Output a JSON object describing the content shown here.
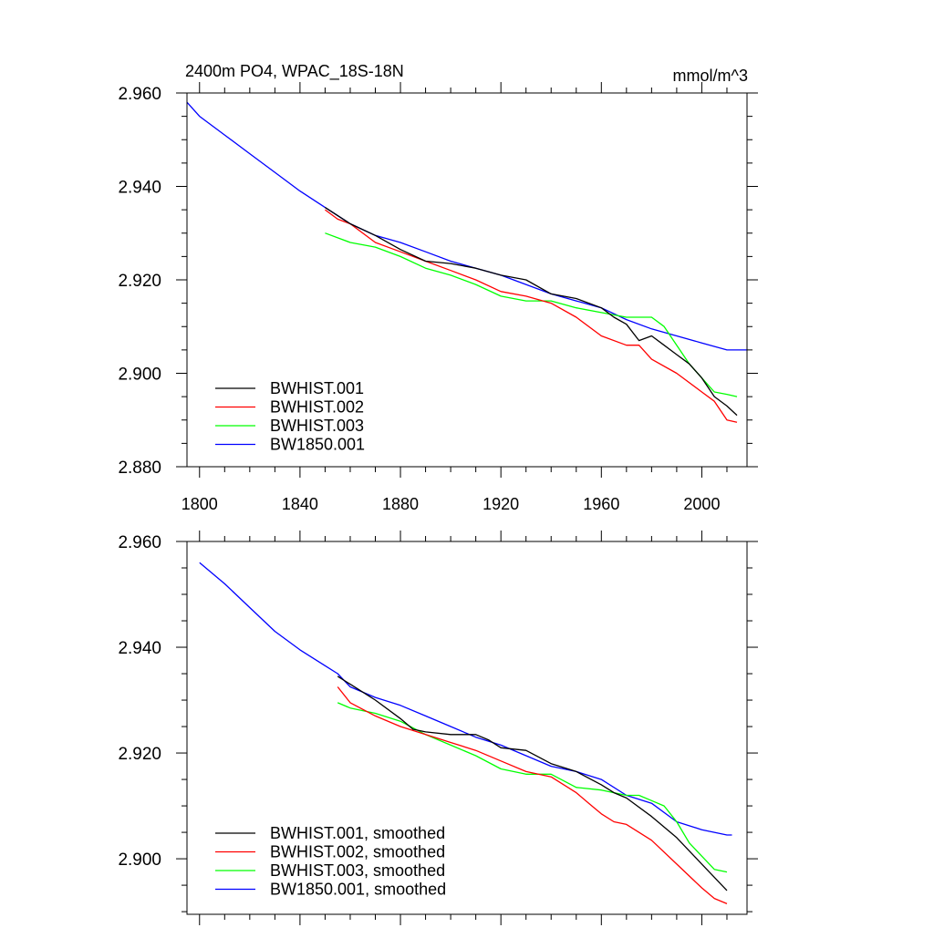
{
  "chart_data": [
    {
      "type": "line",
      "title": "2400m PO4, WPAC_18S-18N",
      "units": "mmol/m^3",
      "xlim": [
        1795,
        2018
      ],
      "ylim": [
        2.88,
        2.96
      ],
      "xticks": [
        1800,
        1840,
        1880,
        1920,
        1960,
        2000
      ],
      "xtick_labels": [
        "1800",
        "1840",
        "1880",
        "1920",
        "1960",
        "2000"
      ],
      "yticks": [
        2.88,
        2.9,
        2.92,
        2.94,
        2.96
      ],
      "ytick_labels": [
        "2.880",
        "2.900",
        "2.920",
        "2.940",
        "2.960"
      ],
      "legend_position": "bottom-left",
      "series": [
        {
          "name": "BWHIST.001",
          "color": "#000000",
          "x": [
            1850,
            1860,
            1870,
            1880,
            1890,
            1900,
            1910,
            1920,
            1930,
            1940,
            1950,
            1960,
            1965,
            1970,
            1975,
            1980,
            1985,
            1990,
            1995,
            2000,
            2005,
            2010,
            2014
          ],
          "y": [
            2.9355,
            2.932,
            2.9295,
            2.9265,
            2.924,
            2.9235,
            2.9225,
            2.921,
            2.92,
            2.917,
            2.916,
            2.914,
            2.912,
            2.9105,
            2.907,
            2.908,
            2.906,
            2.904,
            2.902,
            2.899,
            2.895,
            2.893,
            2.891
          ]
        },
        {
          "name": "BWHIST.002",
          "color": "#ff0000",
          "x": [
            1850,
            1855,
            1860,
            1870,
            1880,
            1890,
            1900,
            1910,
            1920,
            1930,
            1940,
            1950,
            1960,
            1970,
            1975,
            1980,
            1990,
            2000,
            2005,
            2010,
            2014
          ],
          "y": [
            2.935,
            2.933,
            2.932,
            2.928,
            2.926,
            2.924,
            2.922,
            2.92,
            2.9175,
            2.9165,
            2.915,
            2.912,
            2.908,
            2.906,
            2.906,
            2.903,
            2.9,
            2.896,
            2.894,
            2.89,
            2.8895
          ]
        },
        {
          "name": "BWHIST.003",
          "color": "#00ff00",
          "x": [
            1850,
            1860,
            1870,
            1880,
            1890,
            1900,
            1910,
            1920,
            1930,
            1940,
            1950,
            1960,
            1970,
            1975,
            1980,
            1985,
            1990,
            1995,
            2000,
            2005,
            2010,
            2014
          ],
          "y": [
            2.93,
            2.928,
            2.927,
            2.925,
            2.9225,
            2.921,
            2.919,
            2.9165,
            2.9155,
            2.9155,
            2.914,
            2.913,
            2.912,
            2.912,
            2.912,
            2.91,
            2.906,
            2.902,
            2.899,
            2.896,
            2.8955,
            2.895
          ]
        },
        {
          "name": "BW1850.001",
          "color": "#0000ff",
          "x": [
            1795,
            1800,
            1810,
            1820,
            1830,
            1840,
            1850,
            1860,
            1870,
            1880,
            1890,
            1900,
            1910,
            1920,
            1930,
            1940,
            1950,
            1960,
            1970,
            1980,
            1990,
            2000,
            2010,
            2018
          ],
          "y": [
            2.958,
            2.955,
            2.951,
            2.947,
            2.943,
            2.939,
            2.9355,
            2.932,
            2.9295,
            2.928,
            2.926,
            2.924,
            2.9225,
            2.921,
            2.919,
            2.917,
            2.9155,
            2.914,
            2.9115,
            2.9095,
            2.908,
            2.9065,
            2.905,
            2.905
          ]
        }
      ]
    },
    {
      "type": "line",
      "title": "",
      "xlim": [
        1795,
        2018
      ],
      "ylim": [
        2.8895,
        2.96
      ],
      "xticks": [
        1800,
        1840,
        1880,
        1920,
        1960,
        2000
      ],
      "yticks": [
        2.9,
        2.92,
        2.94,
        2.96
      ],
      "ytick_labels": [
        "2.900",
        "2.920",
        "2.940",
        "2.960"
      ],
      "legend_position": "bottom-left",
      "series": [
        {
          "name": "BWHIST.001, smoothed",
          "color": "#000000",
          "x": [
            1855,
            1860,
            1870,
            1880,
            1885,
            1890,
            1900,
            1910,
            1915,
            1920,
            1930,
            1940,
            1950,
            1960,
            1965,
            1970,
            1980,
            1990,
            2000,
            2005,
            2010
          ],
          "y": [
            2.9345,
            2.933,
            2.93,
            2.9265,
            2.9245,
            2.924,
            2.9235,
            2.9235,
            2.9225,
            2.921,
            2.9205,
            2.918,
            2.9165,
            2.914,
            2.9125,
            2.9115,
            2.908,
            2.904,
            2.899,
            2.8965,
            2.894
          ]
        },
        {
          "name": "BWHIST.002, smoothed",
          "color": "#ff0000",
          "x": [
            1855,
            1860,
            1870,
            1880,
            1890,
            1900,
            1910,
            1920,
            1930,
            1940,
            1950,
            1955,
            1960,
            1965,
            1970,
            1980,
            1990,
            2000,
            2005,
            2010
          ],
          "y": [
            2.9325,
            2.9295,
            2.927,
            2.925,
            2.9235,
            2.922,
            2.9205,
            2.9185,
            2.9165,
            2.9155,
            2.9125,
            2.9105,
            2.9085,
            2.907,
            2.9065,
            2.9035,
            2.899,
            2.8945,
            2.8925,
            2.8915
          ]
        },
        {
          "name": "BWHIST.003, smoothed",
          "color": "#00ff00",
          "x": [
            1855,
            1860,
            1870,
            1880,
            1890,
            1900,
            1910,
            1920,
            1930,
            1940,
            1950,
            1960,
            1970,
            1975,
            1980,
            1985,
            1990,
            1995,
            2000,
            2005,
            2010
          ],
          "y": [
            2.9295,
            2.9285,
            2.9275,
            2.926,
            2.9235,
            2.9215,
            2.9195,
            2.917,
            2.916,
            2.916,
            2.9135,
            2.913,
            2.912,
            2.912,
            2.911,
            2.91,
            2.907,
            2.903,
            2.9005,
            2.898,
            2.8975
          ]
        },
        {
          "name": "BW1850.001, smoothed",
          "color": "#0000ff",
          "x": [
            1800,
            1810,
            1820,
            1830,
            1840,
            1850,
            1855,
            1860,
            1870,
            1880,
            1890,
            1900,
            1910,
            1920,
            1930,
            1940,
            1950,
            1960,
            1970,
            1980,
            1990,
            2000,
            2010,
            2012
          ],
          "y": [
            2.956,
            2.952,
            2.9475,
            2.943,
            2.9395,
            2.9365,
            2.935,
            2.9325,
            2.9305,
            2.929,
            2.927,
            2.925,
            2.923,
            2.9215,
            2.9195,
            2.9175,
            2.9165,
            2.915,
            2.912,
            2.9105,
            2.907,
            2.9055,
            2.9045,
            2.9045
          ]
        }
      ]
    }
  ]
}
